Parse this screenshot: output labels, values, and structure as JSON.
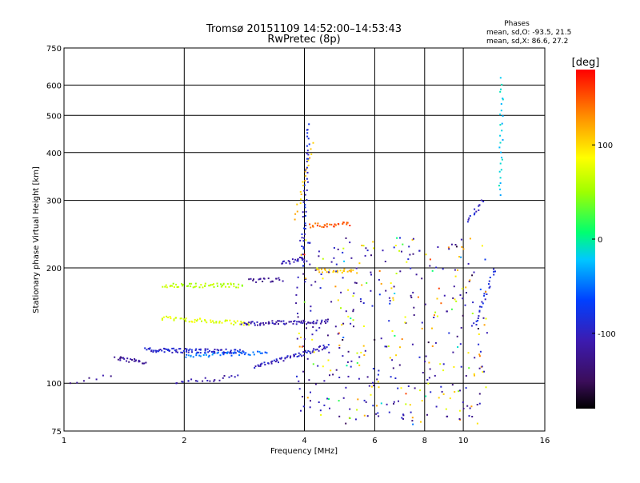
{
  "chart_data": {
    "type": "scatter",
    "title": "Tromsø 20151109 14:52:00–14:53:43",
    "subtitle": "RwPretec (8p)",
    "stats": {
      "heading": "Phases",
      "line_o": "mean, sd,O: -93.5, 21.5",
      "line_x": "mean, sd,X:  86.6, 27.2"
    },
    "xlabel": "Frequency [MHz]",
    "ylabel": "Stationary phase Virtual Height [km]",
    "x_scale": "log",
    "y_scale": "log",
    "xlim": [
      1,
      16
    ],
    "ylim": [
      75,
      750
    ],
    "xticks": [
      1,
      2,
      4,
      6,
      8,
      10,
      16
    ],
    "xtick_labels": [
      "1",
      "2",
      "4",
      "6",
      "8",
      "10",
      "16"
    ],
    "yticks": [
      75,
      100,
      200,
      300,
      400,
      500,
      600,
      750
    ],
    "ytick_labels": [
      "75",
      "100",
      "200",
      "300",
      "400",
      "500",
      "600",
      "750"
    ],
    "grid": true,
    "colorbar": {
      "label": "[deg]",
      "range": [
        -180,
        180
      ],
      "ticks": [
        100,
        0,
        -100
      ],
      "tick_labels": [
        "100",
        "0",
        "-100"
      ]
    },
    "traces": [
      {
        "x": [
          1.78,
          2.8
        ],
        "y": [
          180,
          180
        ],
        "phase": 60,
        "count": 55
      },
      {
        "x": [
          1.75,
          2.9
        ],
        "y": [
          148,
          143
        ],
        "phase": 75,
        "count": 55
      },
      {
        "x": [
          2.8,
          4.6
        ],
        "y": [
          143,
          145
        ],
        "phase": -110,
        "count": 70
      },
      {
        "x": [
          1.6,
          2.8
        ],
        "y": [
          122,
          121
        ],
        "phase": -95,
        "count": 90
      },
      {
        "x": [
          1.35,
          1.6
        ],
        "y": [
          116,
          113
        ],
        "phase": -120,
        "count": 25
      },
      {
        "x": [
          2.0,
          3.2
        ],
        "y": [
          118,
          120
        ],
        "phase": -50,
        "count": 45
      },
      {
        "x": [
          3.0,
          4.6
        ],
        "y": [
          110,
          125
        ],
        "phase": -100,
        "count": 60
      },
      {
        "x": [
          2.9,
          3.5
        ],
        "y": [
          185,
          186
        ],
        "phase": -120,
        "count": 20
      },
      {
        "x": [
          3.5,
          4.0
        ],
        "y": [
          205,
          212
        ],
        "phase": -110,
        "count": 18
      },
      {
        "x": [
          4.1,
          5.2
        ],
        "y": [
          258,
          260
        ],
        "phase": 150,
        "count": 30
      },
      {
        "x": [
          4.3,
          5.3
        ],
        "y": [
          197,
          196
        ],
        "phase": 110,
        "count": 25
      },
      {
        "x": [
          3.95,
          4.1
        ],
        "y": [
          200,
          470
        ],
        "phase": -90,
        "count": 50
      },
      {
        "x": [
          3.8,
          4.2
        ],
        "y": [
          270,
          420
        ],
        "phase": 110,
        "count": 20
      },
      {
        "x": [
          12.4,
          12.5
        ],
        "y": [
          310,
          620
        ],
        "phase": -20,
        "count": 28
      },
      {
        "x": [
          10.3,
          11.2
        ],
        "y": [
          265,
          300
        ],
        "phase": -100,
        "count": 14
      },
      {
        "x": [
          10.6,
          12.0
        ],
        "y": [
          140,
          200
        ],
        "phase": -90,
        "count": 25
      },
      {
        "x": [
          1.9,
          2.7
        ],
        "y": [
          100,
          104
        ],
        "phase": -110,
        "count": 22
      },
      {
        "x": [
          1.0,
          1.3
        ],
        "y": [
          100,
          104
        ],
        "phase": -120,
        "count": 8
      }
    ],
    "scatter_cloud": {
      "x": [
        3.8,
        11.5
      ],
      "y": [
        78,
        240
      ],
      "count": 420
    }
  }
}
